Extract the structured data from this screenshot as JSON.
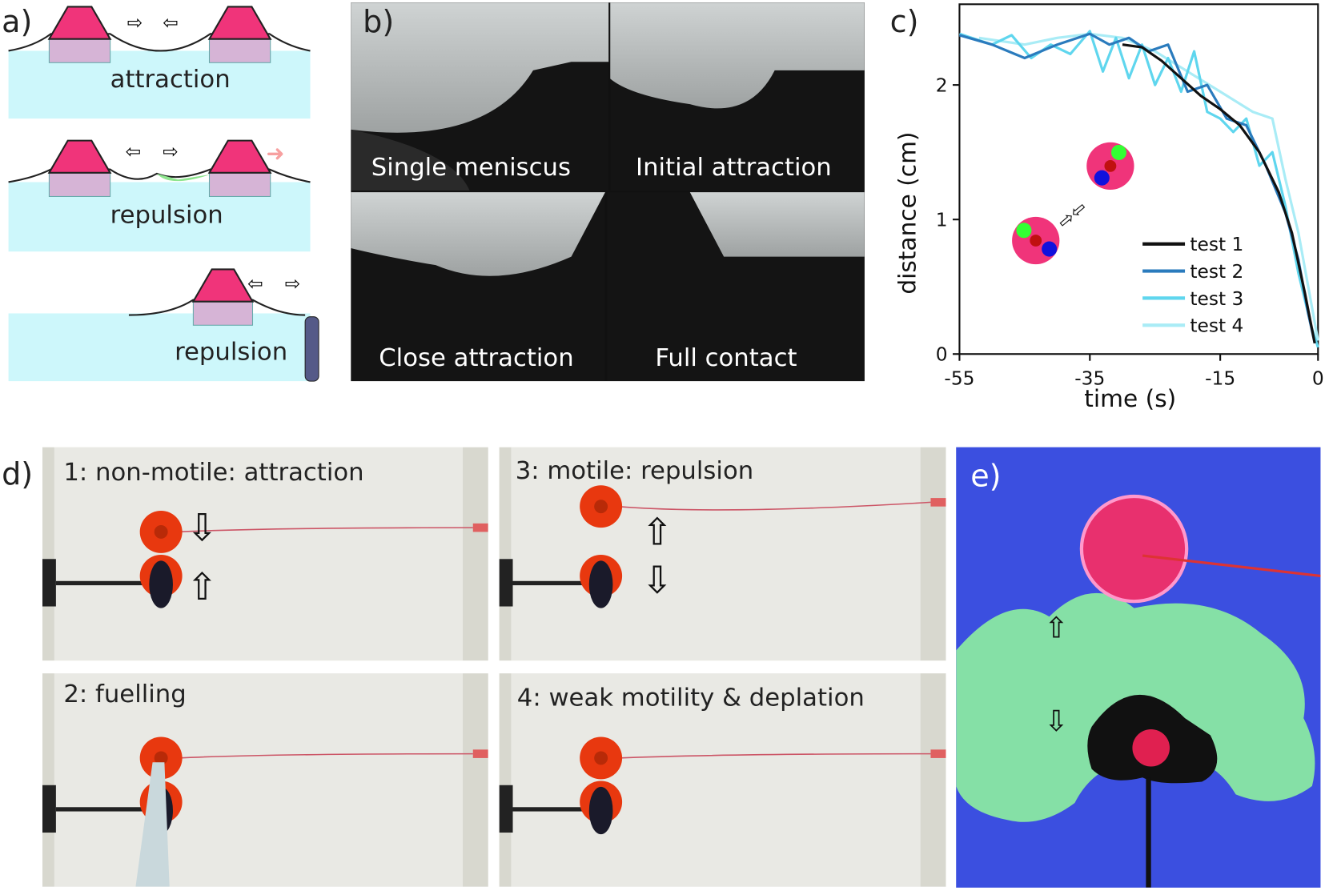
{
  "panels": {
    "a": {
      "label": "a)",
      "captions": [
        "attraction",
        "repulsion",
        "repulsion"
      ]
    },
    "b": {
      "label": "b)",
      "captions": [
        "Single meniscus",
        "Initial attraction",
        "Close attraction",
        "Full contact"
      ]
    },
    "c": {
      "label": "c)"
    },
    "d": {
      "label": "d)",
      "captions": [
        "1: non-motile: attraction",
        "2: fuelling",
        "3: motile: repulsion",
        "4: weak motility & deplation"
      ]
    },
    "e": {
      "label": "e)"
    }
  },
  "colors": {
    "water": "#cdf7fb",
    "float_top": "#f0347a",
    "float_base": "#d6b4d6",
    "fuel": "#8ee58e",
    "test1": "#111111",
    "test2": "#2a7bbd",
    "test3": "#5fd6ee",
    "test4": "#a9ecf6",
    "uv_bg": "#3b4fe0",
    "dye": "#8ef0a0"
  },
  "chart_data": {
    "type": "line",
    "xlabel": "time (s)",
    "ylabel": "distance (cm)",
    "xlim": [
      -55,
      0
    ],
    "ylim": [
      0,
      2.6
    ],
    "xticks": [
      "-55",
      "-35",
      "-15",
      "0"
    ],
    "yticks": [
      "0",
      "1",
      "2"
    ],
    "legend_placement": "bottom-right",
    "series": [
      {
        "name": "test 1",
        "x": [
          -30,
          -27,
          -24,
          -21,
          -18,
          -15,
          -12,
          -9,
          -6,
          -4,
          -2,
          -0.5
        ],
        "y": [
          2.3,
          2.28,
          2.18,
          2.05,
          1.92,
          1.82,
          1.7,
          1.5,
          1.2,
          0.9,
          0.45,
          0.08
        ]
      },
      {
        "name": "test 2",
        "x": [
          -55,
          -50,
          -45,
          -40,
          -35,
          -32,
          -29,
          -26,
          -23,
          -20,
          -17,
          -14,
          -11,
          -8,
          -5,
          -3,
          -1.5,
          -0.5
        ],
        "y": [
          2.37,
          2.3,
          2.2,
          2.3,
          2.38,
          2.3,
          2.35,
          2.25,
          2.3,
          1.95,
          2.0,
          1.75,
          1.7,
          1.4,
          1.05,
          0.7,
          0.3,
          0.08
        ]
      },
      {
        "name": "test 3",
        "x": [
          -55,
          -50,
          -47,
          -44,
          -41,
          -38,
          -35,
          -33,
          -31,
          -29,
          -27,
          -25,
          -23,
          -21,
          -19,
          -17,
          -15,
          -13,
          -11,
          -9,
          -7,
          -5,
          -3,
          -1,
          0
        ],
        "y": [
          2.38,
          2.3,
          2.37,
          2.2,
          2.3,
          2.23,
          2.4,
          2.1,
          2.35,
          2.05,
          2.3,
          2.0,
          2.2,
          1.95,
          2.25,
          1.8,
          1.75,
          1.65,
          1.75,
          1.4,
          1.5,
          1.1,
          0.6,
          0.2,
          0.05
        ]
      },
      {
        "name": "test 4",
        "x": [
          -52,
          -45,
          -40,
          -35,
          -30,
          -25,
          -20,
          -15,
          -10,
          -7,
          -5,
          -3,
          -1.5,
          0
        ],
        "y": [
          2.35,
          2.3,
          2.35,
          2.38,
          2.35,
          2.25,
          2.1,
          1.95,
          1.8,
          1.75,
          1.3,
          0.9,
          0.5,
          0.1
        ]
      }
    ]
  }
}
